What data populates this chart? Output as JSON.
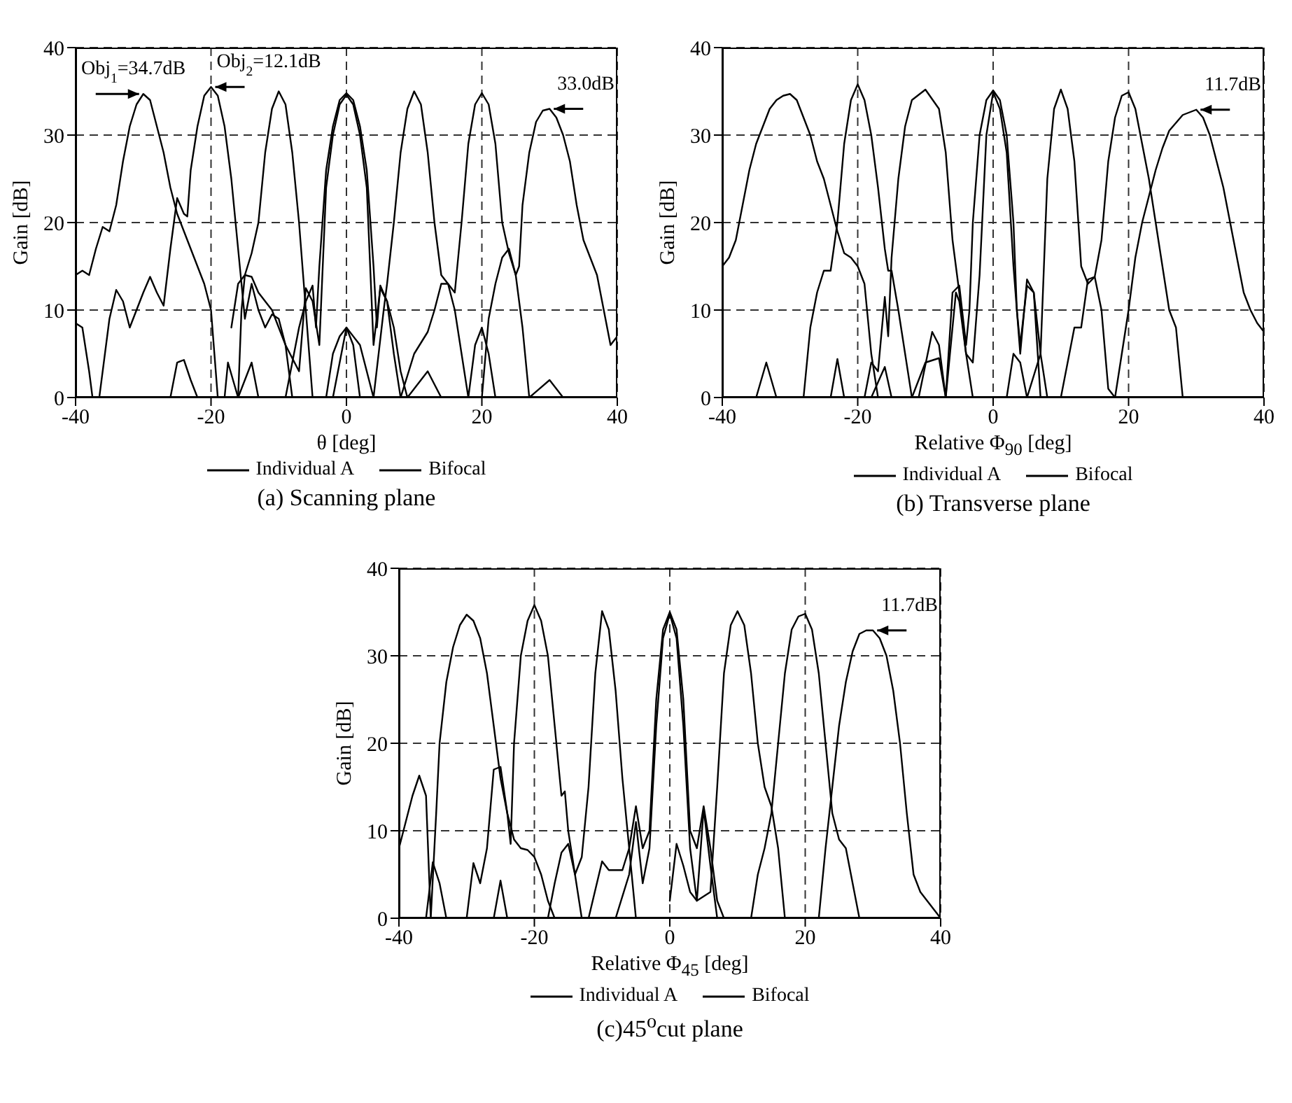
{
  "chart_data": [
    {
      "type": "line",
      "title": "(a) Scanning plane",
      "xlabel": "θ [deg]",
      "ylabel": "Gain [dB]",
      "xlim": [
        -40,
        40
      ],
      "ylim": [
        0,
        40
      ],
      "xticks": [
        -40,
        -20,
        0,
        20,
        40
      ],
      "yticks": [
        0,
        10,
        20,
        30,
        40
      ],
      "grid": true,
      "legend": "bottom",
      "marker": "none",
      "line_style": "solid",
      "annotations": [
        {
          "text": "Obj$_{1}$=34.7dB",
          "x": -30,
          "y": 34.7
        },
        {
          "text": "Obj$_{2}$=12.1dB",
          "x": -20,
          "y": 35.5
        },
        {
          "text": "33.0dB",
          "x": 30,
          "y": 33.0
        }
      ],
      "series": [
        {
          "name": "Individual A",
          "color": "#000000",
          "x": [
            -18,
            -17.5,
            -16,
            -14,
            -13,
            -9,
            -7,
            -6,
            -5,
            -4.5,
            -4,
            -3,
            -2,
            -1,
            0,
            1,
            2,
            3,
            4,
            4.5,
            5,
            6,
            7,
            8,
            9,
            12,
            14
          ],
          "values": [
            0,
            4,
            0,
            4,
            0,
            0,
            8,
            11,
            12.8,
            8,
            15,
            26,
            31,
            34,
            34.8,
            34,
            31,
            26,
            15,
            8,
            12.8,
            11,
            8,
            3,
            0,
            3,
            0
          ]
        },
        {
          "name": "Bifocal",
          "color": "#000000",
          "x": [
            -17,
            -16,
            -15,
            -14,
            -13,
            -11,
            -9,
            -7,
            -6,
            -5,
            -4,
            -3,
            -2,
            -1,
            0,
            1,
            2,
            3,
            4,
            5,
            6,
            7,
            8
          ],
          "values": [
            8,
            13,
            14,
            13.8,
            12,
            10,
            6,
            3,
            12.5,
            11,
            6,
            24,
            30,
            33.5,
            34.6,
            33.5,
            30,
            24,
            6,
            12.5,
            11,
            5,
            0
          ]
        },
        {
          "color": "#000000",
          "x": [
            -40,
            -39,
            -38,
            -37,
            -36,
            -35,
            -34,
            -33,
            -32,
            -31,
            -30,
            -29,
            -28,
            -27,
            -26,
            -25,
            -24,
            -23,
            -22,
            -21,
            -20,
            -19.5,
            -19
          ],
          "values": [
            14,
            14.5,
            14,
            17,
            19.5,
            19,
            22,
            27,
            31,
            33.5,
            34.7,
            34,
            31,
            28,
            24,
            21,
            19,
            17,
            15,
            13,
            10,
            5,
            0
          ]
        },
        {
          "color": "#000000",
          "x": [
            -40,
            -39,
            -38,
            -37.5,
            -36.5,
            -35,
            -34,
            -33,
            -32,
            -31,
            -30,
            -29,
            -28,
            -27,
            -26,
            -25,
            -24,
            -23.5,
            -23,
            -22,
            -21,
            -20,
            -19,
            -18,
            -17,
            -16,
            -15,
            -14,
            -13,
            -12,
            -11,
            -10,
            -9,
            -8
          ],
          "values": [
            8.5,
            8,
            3,
            0,
            0,
            9,
            12.3,
            11,
            8,
            10,
            12,
            13.8,
            12,
            10.5,
            17,
            22.8,
            21,
            20.7,
            26,
            31,
            34.5,
            35.5,
            34.5,
            31,
            25,
            17,
            9,
            13,
            10,
            8,
            9.5,
            9,
            6,
            0
          ]
        },
        {
          "color": "#000000",
          "x": [
            -26,
            -25,
            -24,
            -23,
            -22,
            -16,
            -15.5,
            -15,
            -14,
            -13,
            -12,
            -11,
            -10,
            -9,
            -8,
            -7,
            -6,
            -5.5,
            -5,
            -3,
            -2,
            -1,
            0,
            1,
            2
          ],
          "values": [
            0,
            4,
            4.3,
            2,
            0,
            0,
            10,
            14,
            16.5,
            20,
            28,
            33,
            35,
            33.5,
            28,
            20,
            10,
            5,
            0,
            0,
            5,
            7,
            8,
            6,
            0
          ]
        },
        {
          "color": "#000000",
          "x": [
            -2,
            0,
            2,
            4,
            5.5,
            6,
            7,
            8,
            9,
            10,
            11,
            12,
            13,
            14,
            15,
            16,
            17,
            18,
            19,
            20,
            21,
            22
          ],
          "values": [
            0,
            8,
            6,
            0,
            10,
            13,
            20,
            28,
            33,
            35,
            33.5,
            28,
            20,
            14,
            13,
            10,
            5,
            0,
            6,
            8,
            5,
            0
          ]
        },
        {
          "color": "#000000",
          "x": [
            8,
            10,
            12,
            13,
            14,
            15,
            16,
            17,
            18,
            19,
            20,
            21,
            22,
            23,
            24,
            25,
            26,
            27,
            30,
            32
          ],
          "values": [
            0,
            5,
            7.5,
            10,
            13,
            13,
            12,
            20,
            29,
            33.5,
            34.8,
            33.5,
            29,
            20,
            16.5,
            14,
            8,
            0,
            2,
            0
          ]
        },
        {
          "color": "#000000",
          "x": [
            20,
            21,
            22,
            23,
            24,
            25,
            25.5,
            26,
            27,
            28,
            29,
            30,
            31,
            32,
            33,
            34,
            35,
            36,
            37,
            38,
            39,
            40
          ],
          "values": [
            0,
            9,
            13,
            16,
            17,
            14,
            15,
            22,
            28,
            31.5,
            32.8,
            33,
            32,
            30,
            27,
            22,
            18,
            16,
            14,
            10,
            6,
            7
          ]
        }
      ]
    },
    {
      "type": "line",
      "title": "(b) Transverse plane",
      "xlabel": "Relative Φ$_{90}$ [deg]",
      "ylabel": "Gain [dB]",
      "xlim": [
        -40,
        40
      ],
      "ylim": [
        0,
        40
      ],
      "xticks": [
        -40,
        -20,
        0,
        20,
        40
      ],
      "yticks": [
        0,
        10,
        20,
        30,
        40
      ],
      "grid": true,
      "legend": "bottom",
      "marker": "none",
      "line_style": "solid",
      "annotations": [
        {
          "text": "11.7dB",
          "x": 30,
          "y": 32.9
        }
      ],
      "series": [
        {
          "name": "Individual A",
          "color": "#000000",
          "x": [
            -18,
            -16,
            -15,
            -13,
            -11,
            -9,
            -8,
            -7,
            -6,
            -5,
            -4,
            -3.5,
            -3,
            -2,
            -1,
            0,
            1,
            2,
            3,
            3.5,
            4,
            5,
            6,
            7,
            9
          ],
          "values": [
            0,
            3.5,
            0,
            0,
            0,
            7.5,
            6,
            0,
            12,
            12.8,
            6,
            10,
            20,
            30,
            34,
            35.1,
            34,
            30,
            20,
            10,
            6,
            12.8,
            12,
            0,
            0
          ]
        },
        {
          "name": "Bifocal",
          "color": "#000000",
          "x": [
            -12,
            -10,
            -8,
            -7,
            -5.5,
            -5,
            -4,
            -3,
            -2,
            -1,
            0,
            1,
            2,
            3,
            4,
            5,
            6,
            7,
            8
          ],
          "values": [
            0,
            4,
            4.5,
            0,
            12,
            11,
            5,
            4,
            14,
            30,
            34.9,
            33,
            28,
            15,
            5,
            13.5,
            12,
            5,
            0
          ]
        },
        {
          "color": "#000000",
          "x": [
            -40,
            -39,
            -38,
            -37,
            -36,
            -35,
            -34,
            -33,
            -32,
            -31,
            -30,
            -29,
            -28,
            -27,
            -26,
            -25,
            -24,
            -23,
            -22,
            -21,
            -20,
            -19,
            -18,
            -17
          ],
          "values": [
            15,
            16,
            18,
            22,
            26,
            29,
            31,
            33,
            34,
            34.5,
            34.7,
            34,
            32,
            30,
            27,
            25,
            22,
            19,
            16.5,
            16,
            15,
            13,
            5,
            0
          ]
        },
        {
          "color": "#000000",
          "x": [
            -35,
            -33.5,
            -32,
            -28,
            -27,
            -26,
            -25,
            -24,
            -23,
            -22,
            -21,
            -20,
            -19,
            -18,
            -17,
            -16,
            -15.5,
            -15,
            -14,
            -13,
            -12
          ],
          "values": [
            0,
            4,
            0,
            0,
            8,
            12,
            14.5,
            14.5,
            20,
            29,
            34,
            35.8,
            34,
            30,
            24,
            17,
            14.5,
            14.5,
            10,
            5,
            0
          ]
        },
        {
          "color": "#000000",
          "x": [
            -24,
            -23,
            -22,
            -19,
            -18,
            -17,
            -16,
            -15.5,
            -15,
            -14,
            -13,
            -12,
            -10,
            -8,
            -7,
            -6,
            -5,
            -4,
            -3
          ],
          "values": [
            0,
            4.4,
            0,
            0,
            4,
            3,
            11.5,
            7,
            16,
            25,
            31,
            34,
            35.2,
            33,
            28,
            18,
            12,
            5,
            0
          ]
        },
        {
          "color": "#000000",
          "x": [
            2,
            3,
            4,
            5,
            7,
            7.5,
            8,
            9,
            10,
            11,
            12,
            13,
            14,
            15,
            16,
            17,
            18
          ],
          "values": [
            0,
            5,
            4,
            0,
            5,
            15,
            25,
            33,
            35.2,
            33,
            27,
            15,
            13,
            13.8,
            10,
            1,
            0
          ]
        },
        {
          "color": "#000000",
          "x": [
            10,
            12,
            13,
            14,
            15,
            16,
            17,
            18,
            19,
            20,
            21,
            22,
            23,
            24,
            25,
            26,
            27,
            28
          ],
          "values": [
            0,
            8,
            8,
            13.5,
            13.8,
            18,
            27,
            32,
            34.5,
            34.9,
            33,
            29,
            25,
            20,
            15,
            10,
            8,
            0
          ]
        },
        {
          "color": "#000000",
          "x": [
            18,
            19,
            20,
            21,
            22,
            23,
            24,
            25,
            26,
            28,
            30,
            31,
            32,
            33,
            34,
            35,
            36,
            37,
            38,
            39,
            40
          ],
          "values": [
            0,
            5,
            10,
            16,
            20,
            23,
            26,
            28.5,
            30.5,
            32.3,
            32.9,
            32,
            30,
            27,
            24,
            20,
            16,
            12,
            10,
            8.5,
            7.5
          ]
        }
      ]
    },
    {
      "type": "line",
      "title": "(c)45$^{o}$cut plane",
      "xlabel": "Relative Φ$_{45}$ [deg]",
      "ylabel": "Gain [dB]",
      "xlim": [
        -40,
        40
      ],
      "ylim": [
        0,
        40
      ],
      "xticks": [
        -40,
        -20,
        0,
        20,
        40
      ],
      "yticks": [
        0,
        10,
        20,
        30,
        40
      ],
      "grid": true,
      "legend": "bottom",
      "marker": "none",
      "line_style": "solid",
      "annotations": [
        {
          "text": "11.7dB",
          "x": 30,
          "y": 32.9
        }
      ],
      "series": [
        {
          "name": "Individual A",
          "color": "#000000",
          "x": [
            -12,
            -10,
            -9,
            -8,
            -7,
            -6,
            -5,
            -4,
            -3,
            -2,
            -1,
            0,
            1,
            2,
            3,
            4,
            5,
            6,
            7,
            8
          ],
          "values": [
            0,
            6.5,
            5.5,
            5.5,
            5.5,
            8,
            12.8,
            8,
            10,
            25,
            33,
            35,
            33,
            25,
            10,
            8,
            12.8,
            8,
            2,
            0
          ]
        },
        {
          "name": "Bifocal",
          "color": "#000000",
          "x": [
            -8,
            -6,
            -5,
            -4,
            -3,
            -2,
            -1,
            0,
            1,
            2,
            3,
            4,
            5,
            6,
            7
          ],
          "values": [
            0,
            5,
            11,
            4,
            8,
            22,
            32,
            34.8,
            32,
            22,
            8,
            2,
            12.5,
            6,
            0
          ]
        },
        {
          "color": "#000000",
          "x": [
            -40,
            -39,
            -38,
            -37,
            -36,
            -35.3,
            -34.5,
            -34,
            -33,
            -32,
            -31,
            -30,
            -29,
            -28,
            -27,
            -26,
            -25,
            -24,
            -23,
            -22,
            -21,
            -20,
            -19,
            -18,
            -17
          ],
          "values": [
            8,
            11,
            14,
            16.3,
            14,
            0,
            12,
            20,
            27,
            31,
            33.5,
            34.7,
            34,
            32,
            28,
            22,
            16,
            12,
            9,
            8,
            7.8,
            7,
            5,
            2,
            0
          ]
        },
        {
          "color": "#000000",
          "x": [
            -36,
            -35,
            -34,
            -33,
            -30,
            -29,
            -28,
            -27,
            -26,
            -25,
            -24,
            -23.5,
            -23,
            -22,
            -21,
            -20,
            -19,
            -18,
            -17,
            -16,
            -15.5,
            -15,
            -14,
            -13
          ],
          "values": [
            0,
            6.4,
            4,
            0,
            0,
            6.3,
            4,
            8,
            17,
            17.3,
            12,
            8.5,
            20,
            30,
            34,
            35.8,
            34,
            30,
            22,
            14,
            14.5,
            10,
            5,
            0
          ]
        },
        {
          "color": "#000000",
          "x": [
            -26,
            -25,
            -24,
            -18,
            -17,
            -16,
            -15,
            -14,
            -13,
            -12,
            -11,
            -10,
            -9,
            -8,
            -7,
            -6,
            -5
          ],
          "values": [
            0,
            4.3,
            0,
            0,
            4,
            7.5,
            8.5,
            5,
            7,
            15,
            28,
            35.1,
            33,
            26,
            16,
            8,
            0
          ]
        },
        {
          "color": "#000000",
          "x": [
            0,
            1,
            2,
            3,
            4,
            6,
            7,
            8,
            9,
            10,
            11,
            12,
            13,
            14,
            15,
            16,
            17
          ],
          "values": [
            2,
            8.5,
            6,
            3,
            2,
            3,
            15,
            28,
            33.5,
            35.1,
            33.5,
            28,
            20,
            15,
            12.8,
            8,
            0
          ]
        },
        {
          "color": "#000000",
          "x": [
            12,
            13,
            14,
            15,
            16,
            17,
            18,
            19,
            20,
            21,
            22,
            23,
            24,
            25,
            26,
            27,
            28
          ],
          "values": [
            0,
            5,
            8,
            12,
            20,
            28,
            33,
            34.5,
            34.8,
            33,
            28,
            20,
            12,
            9,
            8,
            4,
            0
          ]
        },
        {
          "color": "#000000",
          "x": [
            22,
            23,
            24,
            25,
            26,
            27,
            28,
            29,
            30,
            31,
            32,
            33,
            34,
            35,
            36,
            37,
            38,
            39,
            40
          ],
          "values": [
            0,
            8,
            15,
            22,
            27,
            30.5,
            32.5,
            32.9,
            32.9,
            32,
            30,
            26,
            20,
            12,
            5,
            3,
            2,
            1,
            0
          ]
        }
      ]
    }
  ]
}
